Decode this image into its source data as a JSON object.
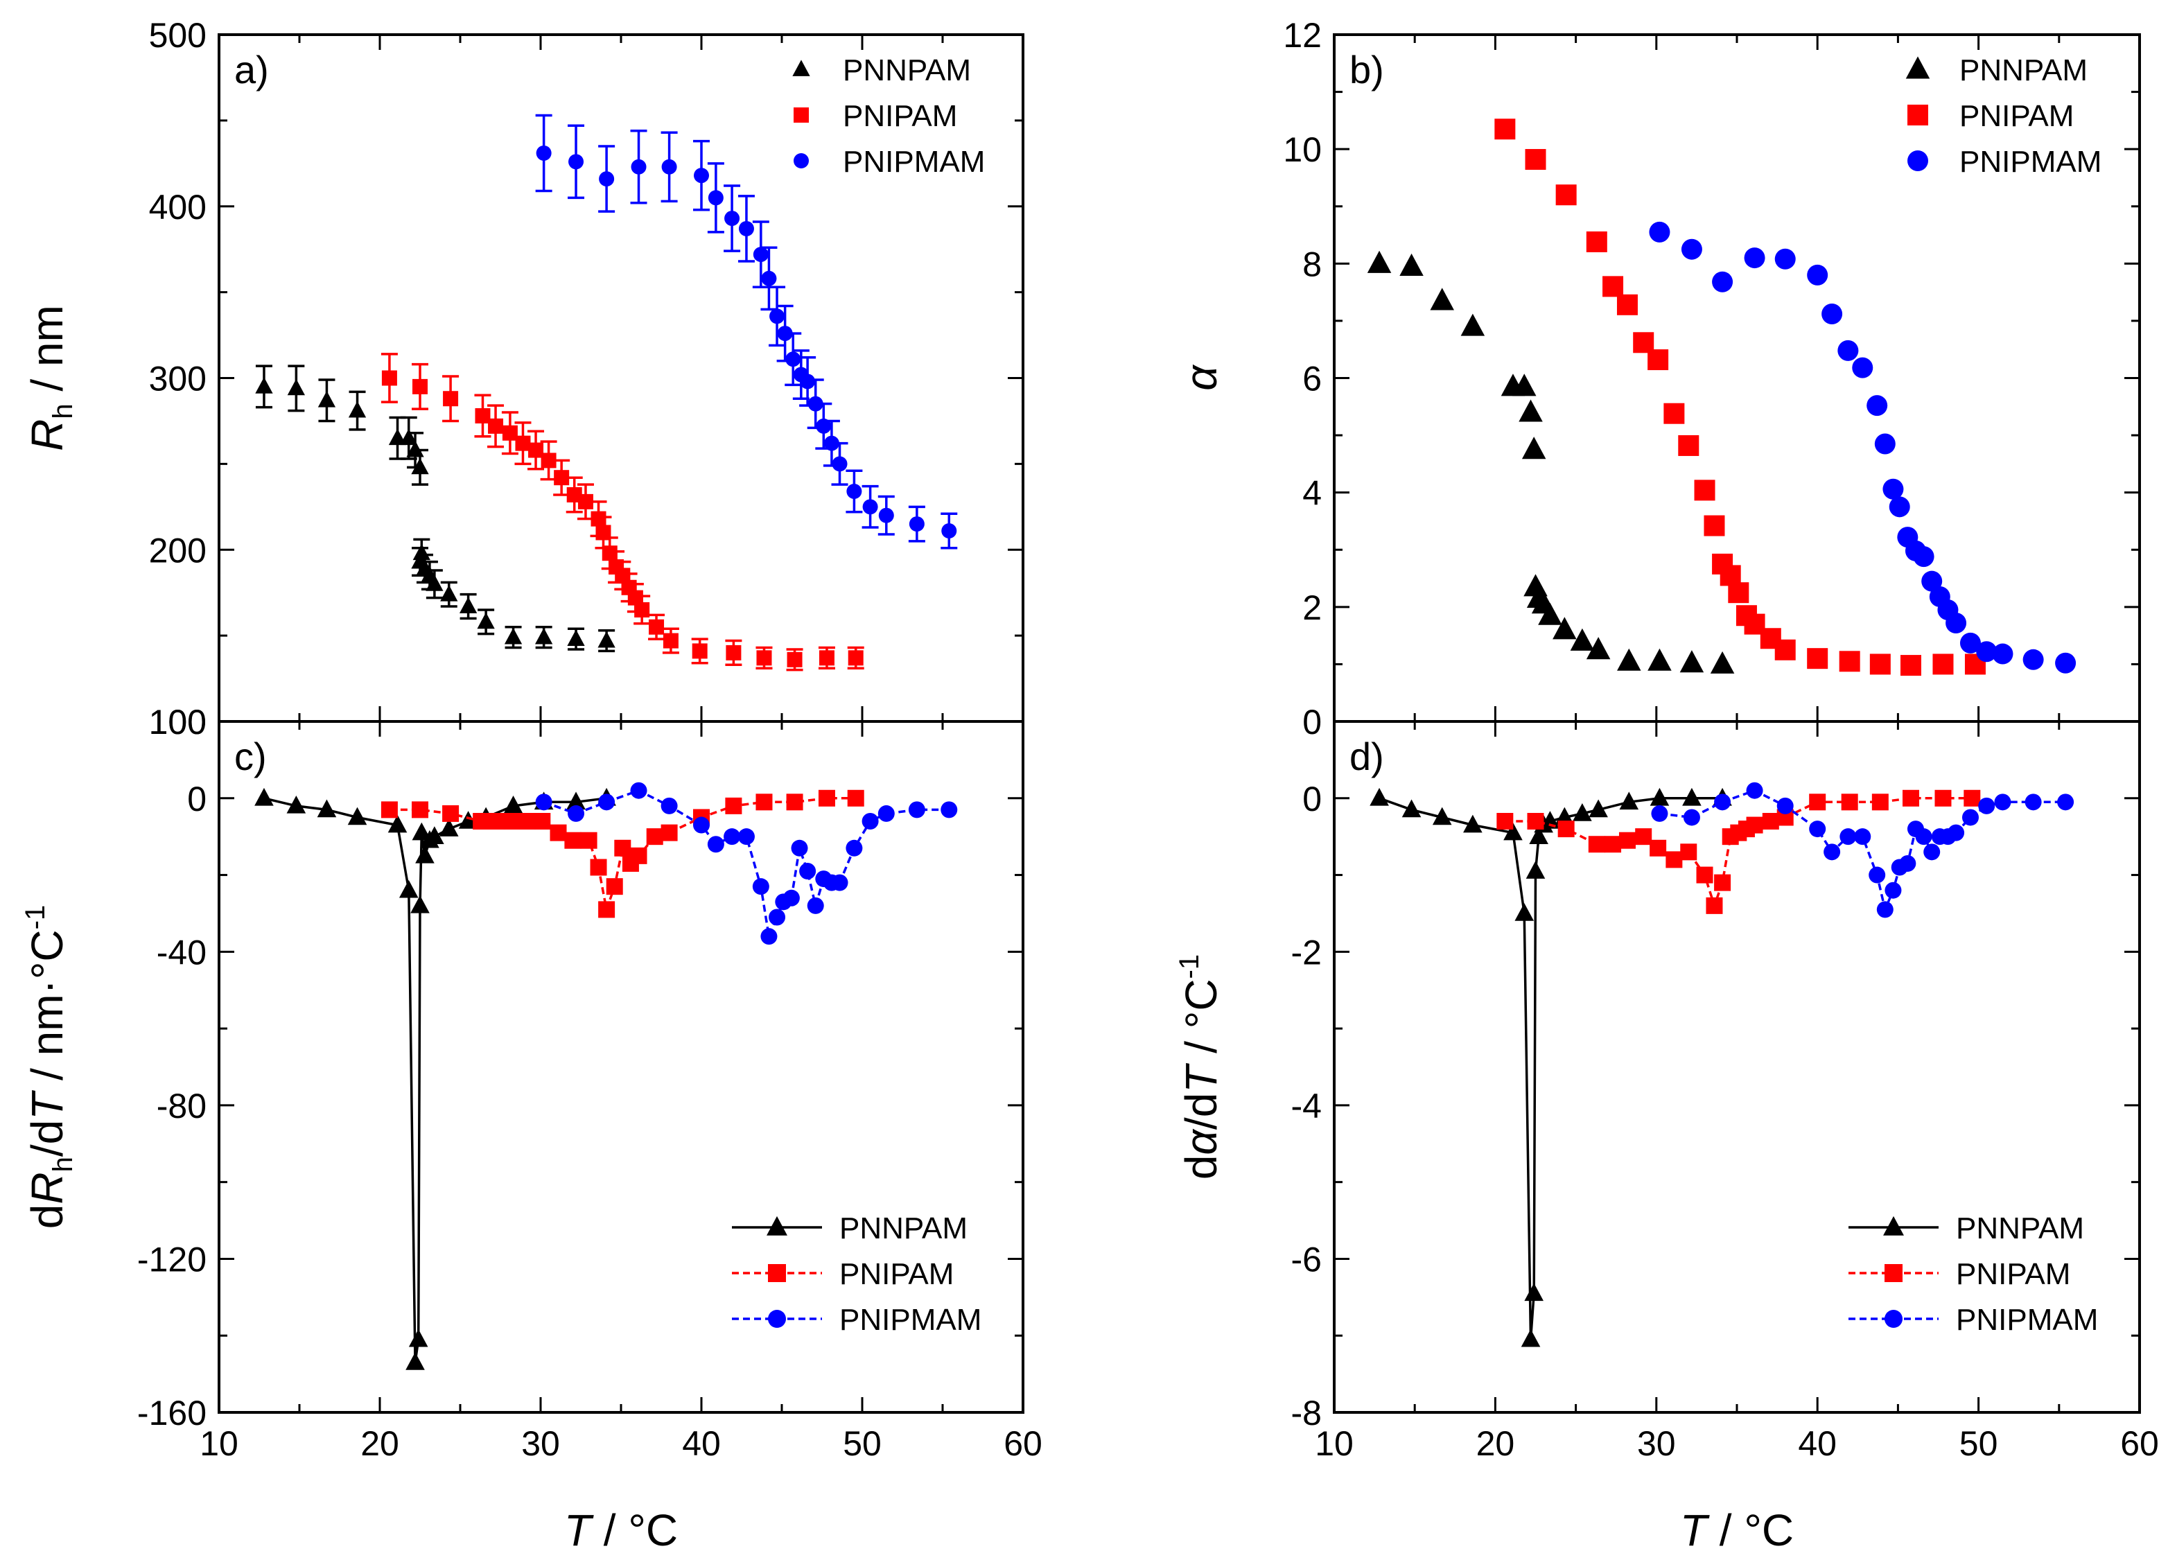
{
  "figure": {
    "shared_xlabel": "T / °C",
    "colors": {
      "PNNPAM": "#000000",
      "PNIPAM": "#ff0000",
      "PNIPMAM": "#0000ff"
    }
  },
  "chart_data": [
    {
      "panel": "a)",
      "type": "scatter",
      "title": "",
      "xlabel": "T / °C",
      "ylabel": "R_h / nm",
      "xlim": [
        10,
        60
      ],
      "ylim": [
        100,
        500
      ],
      "xticks": [
        10,
        20,
        30,
        40,
        50,
        60
      ],
      "yticks": [
        100,
        200,
        300,
        400,
        500
      ],
      "show_xtick_labels": false,
      "legend_position": "top-right",
      "legend_lines": false,
      "error_bars": true,
      "series": [
        {
          "name": "PNNPAM",
          "color": "#000000",
          "marker": "triangle",
          "x": [
            12.8,
            14.8,
            16.7,
            18.6,
            21.1,
            21.8,
            22.2,
            22.5,
            22.5,
            22.6,
            22.8,
            23.1,
            23.4,
            24.3,
            25.5,
            26.6,
            28.3,
            30.2,
            32.2,
            34.1
          ],
          "y": [
            295,
            294,
            287,
            281,
            265,
            265,
            258,
            248,
            193,
            198,
            189,
            185,
            180,
            174,
            167,
            158,
            149,
            149,
            148,
            147
          ],
          "err": [
            12,
            13,
            12,
            11,
            12,
            12,
            10,
            10,
            8,
            8,
            8,
            8,
            8,
            7,
            7,
            7,
            6,
            6,
            6,
            6
          ]
        },
        {
          "name": "PNIPAM",
          "color": "#ff0000",
          "marker": "square",
          "x": [
            20.6,
            22.5,
            24.4,
            26.4,
            27.2,
            28.1,
            28.9,
            29.7,
            30.5,
            31.3,
            32.1,
            32.8,
            33.6,
            33.9,
            34.3,
            34.7,
            35.1,
            35.5,
            35.9,
            36.3,
            37.2,
            38.1,
            39.9,
            42.0,
            43.9,
            45.8,
            47.8,
            49.6
          ],
          "y": [
            300,
            295,
            288,
            278,
            272,
            268,
            262,
            258,
            252,
            242,
            232,
            228,
            218,
            210,
            198,
            190,
            185,
            178,
            172,
            165,
            155,
            147,
            141,
            140,
            137,
            136,
            137,
            137
          ],
          "err": [
            14,
            13,
            13,
            12,
            12,
            12,
            12,
            11,
            11,
            10,
            10,
            10,
            10,
            9,
            9,
            9,
            8,
            8,
            8,
            8,
            7,
            7,
            7,
            7,
            6,
            6,
            6,
            6
          ]
        },
        {
          "name": "PNIPMAM",
          "color": "#0000ff",
          "marker": "circle",
          "x": [
            30.2,
            32.2,
            34.1,
            36.1,
            38.0,
            40.0,
            40.9,
            41.9,
            42.8,
            43.7,
            44.2,
            44.7,
            45.2,
            45.7,
            46.2,
            46.6,
            47.1,
            47.6,
            48.1,
            48.6,
            49.5,
            50.5,
            51.5,
            53.4,
            55.4
          ],
          "y": [
            431,
            426,
            416,
            423,
            423,
            418,
            405,
            393,
            387,
            372,
            358,
            336,
            326,
            311,
            302,
            298,
            285,
            272,
            262,
            250,
            234,
            225,
            220,
            215,
            211
          ],
          "err": [
            22,
            21,
            19,
            21,
            20,
            20,
            20,
            19,
            19,
            19,
            18,
            17,
            16,
            15,
            14,
            14,
            14,
            13,
            13,
            12,
            12,
            12,
            11,
            10,
            10
          ]
        }
      ]
    },
    {
      "panel": "b)",
      "type": "scatter",
      "title": "",
      "xlabel": "T / °C",
      "ylabel": "α",
      "xlim": [
        10,
        60
      ],
      "ylim": [
        0,
        12
      ],
      "xticks": [
        10,
        20,
        30,
        40,
        50,
        60
      ],
      "yticks": [
        0,
        2,
        4,
        6,
        8,
        10,
        12
      ],
      "show_xtick_labels": false,
      "legend_position": "top-right",
      "legend_lines": false,
      "error_bars": false,
      "series": [
        {
          "name": "PNNPAM",
          "color": "#000000",
          "marker": "triangle",
          "x": [
            12.8,
            14.8,
            16.7,
            18.6,
            21.1,
            21.8,
            22.2,
            22.4,
            22.5,
            22.7,
            23.0,
            23.4,
            24.3,
            25.4,
            26.4,
            28.3,
            30.2,
            32.2,
            34.1
          ],
          "y": [
            8.0,
            7.95,
            7.35,
            6.9,
            5.85,
            5.85,
            5.4,
            4.75,
            2.35,
            2.15,
            2.05,
            1.85,
            1.6,
            1.4,
            1.25,
            1.05,
            1.05,
            1.02,
            1.0
          ],
          "err": []
        },
        {
          "name": "PNIPAM",
          "color": "#ff0000",
          "marker": "square",
          "x": [
            20.6,
            22.5,
            24.4,
            26.3,
            27.3,
            28.2,
            29.2,
            30.1,
            31.1,
            32.0,
            33.0,
            33.6,
            34.1,
            34.6,
            35.1,
            35.6,
            36.1,
            37.1,
            38.0,
            40.0,
            42.0,
            43.9,
            45.8,
            47.8,
            49.8
          ],
          "y": [
            10.35,
            9.82,
            9.2,
            8.38,
            7.6,
            7.28,
            6.62,
            6.32,
            5.38,
            4.82,
            4.04,
            3.42,
            2.75,
            2.55,
            2.25,
            1.85,
            1.7,
            1.45,
            1.25,
            1.1,
            1.05,
            1.0,
            0.98,
            1.0,
            1.0
          ],
          "err": []
        },
        {
          "name": "PNIPMAM",
          "color": "#0000ff",
          "marker": "circle",
          "x": [
            30.2,
            32.2,
            34.1,
            36.1,
            38.0,
            40.0,
            40.9,
            41.9,
            42.8,
            43.7,
            44.2,
            44.7,
            45.1,
            45.6,
            46.1,
            46.6,
            47.1,
            47.6,
            48.1,
            48.6,
            49.5,
            50.5,
            51.5,
            53.4,
            55.4
          ],
          "y": [
            8.55,
            8.25,
            7.68,
            8.1,
            8.08,
            7.8,
            7.12,
            6.48,
            6.18,
            5.52,
            4.85,
            4.06,
            3.75,
            3.22,
            2.98,
            2.88,
            2.45,
            2.18,
            1.95,
            1.72,
            1.37,
            1.22,
            1.18,
            1.08,
            1.02
          ],
          "err": []
        }
      ]
    },
    {
      "panel": "c)",
      "type": "line",
      "title": "",
      "xlabel": "T / °C",
      "ylabel": "dR_h/dT / nm·°C^-1",
      "xlim": [
        10,
        60
      ],
      "ylim": [
        -160,
        20
      ],
      "xticks": [
        10,
        20,
        30,
        40,
        50,
        60
      ],
      "yticks": [
        -160,
        -120,
        -80,
        -40,
        0
      ],
      "ytick_labels": [
        "-160",
        "-120",
        "-80",
        "-40",
        "0"
      ],
      "extra_ytick_label": "100",
      "show_xtick_labels": true,
      "legend_position": "bottom-right",
      "legend_lines": true,
      "error_bars": false,
      "series": [
        {
          "name": "PNNPAM",
          "color": "#000000",
          "marker": "triangle",
          "x": [
            12.8,
            14.8,
            16.7,
            18.6,
            21.1,
            21.8,
            22.2,
            22.4,
            22.5,
            22.6,
            22.8,
            23.1,
            23.4,
            24.3,
            25.5,
            26.6,
            28.3,
            30.2,
            32.2,
            34.1
          ],
          "y": [
            0,
            -2,
            -3,
            -5,
            -7,
            -24,
            -147,
            -141,
            -28,
            -9,
            -15,
            -11,
            -10,
            -8,
            -6,
            -5,
            -2,
            -1,
            -1,
            0
          ],
          "err": []
        },
        {
          "name": "PNIPAM",
          "color": "#ff0000",
          "marker": "square",
          "x": [
            20.6,
            22.5,
            24.4,
            26.3,
            27.3,
            28.2,
            29.2,
            30.1,
            31.1,
            32.0,
            33.0,
            33.6,
            34.1,
            34.6,
            35.1,
            35.6,
            36.1,
            37.1,
            38.0,
            40.0,
            42.0,
            43.9,
            45.8,
            47.8,
            49.6
          ],
          "y": [
            -3,
            -3,
            -4,
            -6,
            -6,
            -6,
            -6,
            -6,
            -9,
            -11,
            -11,
            -18,
            -29,
            -23,
            -13,
            -17,
            -15,
            -10,
            -9,
            -5,
            -2,
            -1,
            -1,
            0,
            0
          ],
          "err": []
        },
        {
          "name": "PNIPMAM",
          "color": "#0000ff",
          "marker": "circle",
          "x": [
            30.2,
            32.2,
            34.1,
            36.1,
            38.0,
            40.0,
            40.9,
            41.9,
            42.8,
            43.7,
            44.2,
            44.7,
            45.1,
            45.6,
            46.1,
            46.6,
            47.1,
            47.6,
            48.1,
            48.6,
            49.5,
            50.5,
            51.5,
            53.4,
            55.4
          ],
          "y": [
            -1,
            -4,
            -1,
            2,
            -2,
            -7,
            -12,
            -10,
            -10,
            -23,
            -36,
            -31,
            -27,
            -26,
            -13,
            -19,
            -28,
            -21,
            -22,
            -22,
            -13,
            -6,
            -4,
            -3,
            -3
          ],
          "err": []
        }
      ]
    },
    {
      "panel": "d)",
      "type": "line",
      "title": "",
      "xlabel": "T / °C",
      "ylabel": "dα/dT / °C^-1",
      "xlim": [
        10,
        60
      ],
      "ylim": [
        -8,
        1
      ],
      "xticks": [
        10,
        20,
        30,
        40,
        50,
        60
      ],
      "yticks": [
        -8,
        -6,
        -4,
        -2,
        0
      ],
      "ytick_labels": [
        "-8",
        "-6",
        "-4",
        "-2",
        "0"
      ],
      "show_xtick_labels": true,
      "legend_position": "bottom-right",
      "legend_lines": true,
      "error_bars": false,
      "series": [
        {
          "name": "PNNPAM",
          "color": "#000000",
          "marker": "triangle",
          "x": [
            12.8,
            14.8,
            16.7,
            18.6,
            21.1,
            21.8,
            22.2,
            22.4,
            22.5,
            22.7,
            23.0,
            23.4,
            24.3,
            25.4,
            26.4,
            28.3,
            30.2,
            32.2,
            34.1
          ],
          "y": [
            0,
            -0.15,
            -0.25,
            -0.35,
            -0.45,
            -1.5,
            -7.05,
            -6.45,
            -0.95,
            -0.5,
            -0.35,
            -0.3,
            -0.25,
            -0.2,
            -0.15,
            -0.05,
            0,
            0,
            0
          ],
          "err": []
        },
        {
          "name": "PNIPAM",
          "color": "#ff0000",
          "marker": "square",
          "x": [
            20.6,
            22.5,
            24.4,
            26.3,
            27.3,
            28.2,
            29.2,
            30.1,
            31.1,
            32.0,
            33.0,
            33.6,
            34.1,
            34.6,
            35.1,
            35.6,
            36.1,
            37.1,
            38.0,
            40.0,
            42.0,
            43.9,
            45.8,
            47.8,
            49.6
          ],
          "y": [
            -0.3,
            -0.3,
            -0.4,
            -0.6,
            -0.6,
            -0.55,
            -0.5,
            -0.65,
            -0.8,
            -0.7,
            -1.0,
            -1.4,
            -1.1,
            -0.5,
            -0.45,
            -0.4,
            -0.35,
            -0.3,
            -0.25,
            -0.05,
            -0.05,
            -0.05,
            0,
            0,
            0
          ],
          "err": []
        },
        {
          "name": "PNIPMAM",
          "color": "#0000ff",
          "marker": "circle",
          "x": [
            30.2,
            32.2,
            34.1,
            36.1,
            38.0,
            40.0,
            40.9,
            41.9,
            42.8,
            43.7,
            44.2,
            44.7,
            45.1,
            45.6,
            46.1,
            46.6,
            47.1,
            47.6,
            48.1,
            48.6,
            49.5,
            50.5,
            51.5,
            53.4,
            55.4
          ],
          "y": [
            -0.2,
            -0.25,
            -0.05,
            0.1,
            -0.1,
            -0.4,
            -0.7,
            -0.5,
            -0.5,
            -1.0,
            -1.45,
            -1.2,
            -0.9,
            -0.85,
            -0.4,
            -0.5,
            -0.7,
            -0.5,
            -0.5,
            -0.45,
            -0.25,
            -0.1,
            -0.05,
            -0.05,
            -0.05
          ],
          "err": []
        }
      ]
    }
  ]
}
